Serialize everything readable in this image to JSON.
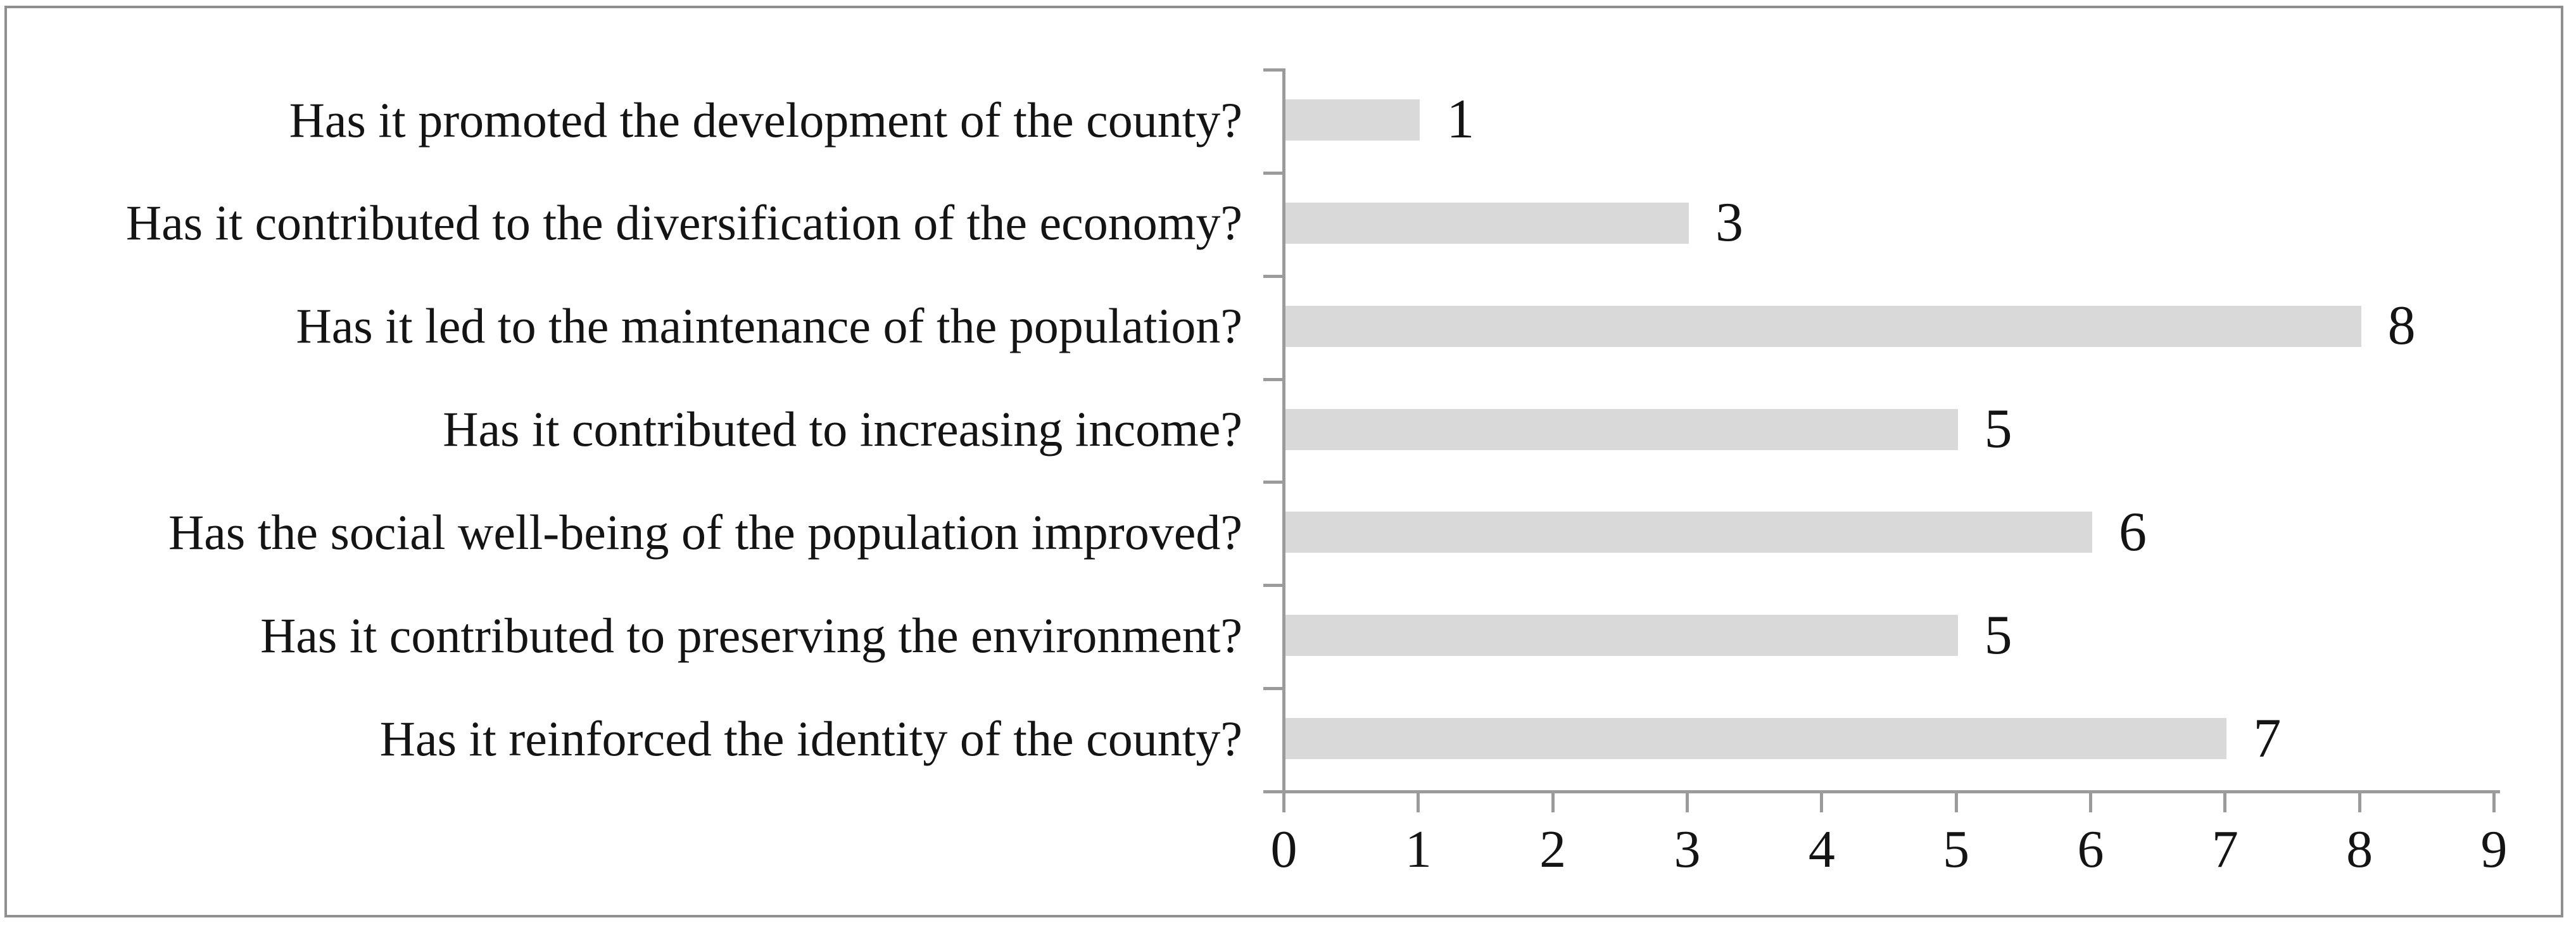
{
  "figure": {
    "background_color": "#ffffff",
    "border_color": "#8f8f8f"
  },
  "chart_data": {
    "type": "bar",
    "orientation": "horizontal",
    "title": "",
    "xlabel": "",
    "ylabel": "",
    "categories": [
      "Has it promoted the development of the county?",
      "Has it contributed to the diversification of the economy?",
      "Has it led to the maintenance of the population?",
      "Has it contributed to increasing income?",
      "Has the social well-being of the population improved?",
      "Has it contributed to preserving the environment?",
      "Has it reinforced the identity of the county?"
    ],
    "values": [
      1,
      3,
      8,
      5,
      6,
      5,
      7
    ],
    "data_labels": [
      "1",
      "3",
      "8",
      "5",
      "6",
      "5",
      "7"
    ],
    "xlim": [
      0,
      9
    ],
    "x_ticks": [
      "0",
      "1",
      "2",
      "3",
      "4",
      "5",
      "6",
      "7",
      "8",
      "9"
    ],
    "grid": false,
    "legend": "none",
    "bar_color": "#d9d9d9",
    "axis_color": "#9b9b9b",
    "text_color": "#141414"
  }
}
